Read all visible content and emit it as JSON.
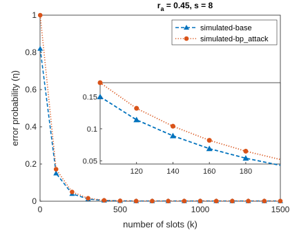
{
  "chart_data": {
    "type": "line",
    "title": {
      "main": "r",
      "sub": "a",
      "rest": " = 0.45, s = 8"
    },
    "xlabel": "number of slots (k)",
    "ylabel": "error probability (η)",
    "xlim": [
      0,
      1500
    ],
    "ylim": [
      0,
      1
    ],
    "xticks": [
      0,
      500,
      1000,
      1500
    ],
    "yticks": [
      0,
      0.2,
      0.4,
      0.6,
      0.8,
      1
    ],
    "grid": false,
    "legend_position": "top-right",
    "series": [
      {
        "name": "simulated-base",
        "color": "#0072BD",
        "line_style": "dashed",
        "marker": "triangle",
        "x": [
          1,
          100,
          200,
          300,
          400,
          500,
          600,
          700,
          800,
          900,
          1000,
          1100,
          1200,
          1300,
          1400,
          1500
        ],
        "y": [
          0.82,
          0.15,
          0.04,
          0.012,
          0.004,
          0.002,
          0.001,
          0.001,
          0.001,
          0.001,
          0.001,
          0.001,
          0.001,
          0.001,
          0.001,
          0.001
        ]
      },
      {
        "name": "simulated-bp_attack",
        "color": "#D95319",
        "line_style": "dotted",
        "marker": "circle",
        "x": [
          1,
          100,
          200,
          300,
          400,
          500,
          600,
          700,
          800,
          900,
          1000,
          1100,
          1200,
          1300,
          1400,
          1500
        ],
        "y": [
          1.0,
          0.172,
          0.05,
          0.016,
          0.005,
          0.002,
          0.001,
          0.001,
          0.001,
          0.001,
          0.001,
          0.001,
          0.001,
          0.001,
          0.001,
          0.001
        ]
      }
    ],
    "inset": {
      "xlim": [
        100,
        199
      ],
      "ylim": [
        0.045,
        0.172
      ],
      "xticks": [
        120,
        140,
        160,
        180
      ],
      "yticks": [
        0.05,
        0.1,
        0.15
      ],
      "series": [
        {
          "name": "simulated-base",
          "x": [
            100,
            120,
            140,
            160,
            180,
            199
          ],
          "y": [
            0.15,
            0.114,
            0.089,
            0.069,
            0.054,
            0.043
          ]
        },
        {
          "name": "simulated-bp_attack",
          "x": [
            100,
            120,
            140,
            160,
            180,
            199
          ],
          "y": [
            0.172,
            0.132,
            0.104,
            0.082,
            0.065,
            0.052
          ]
        }
      ]
    }
  }
}
